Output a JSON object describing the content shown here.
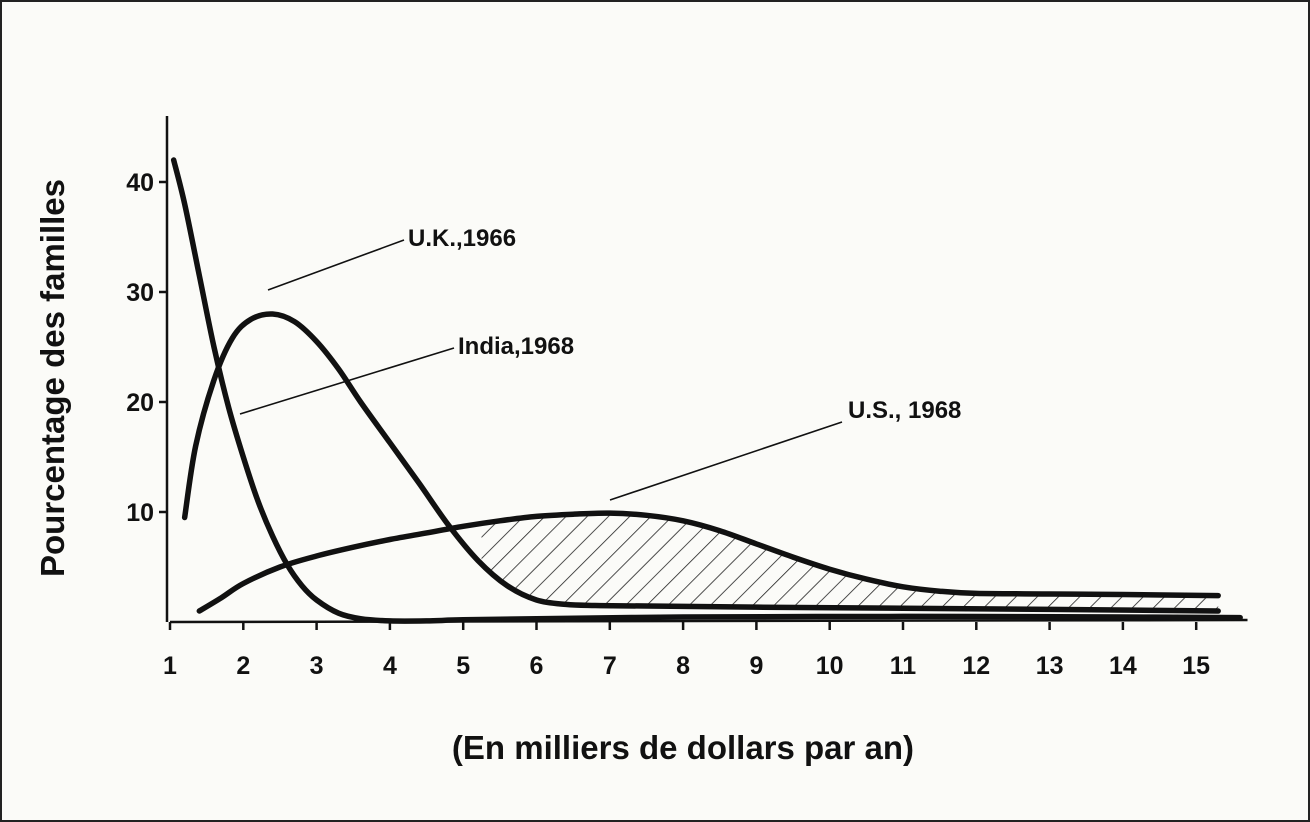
{
  "chart_data": {
    "type": "line",
    "xlabel": "(En milliers de dollars par an)",
    "ylabel": "Pourcentage des familles",
    "x_ticks": [
      "1",
      "2",
      "3",
      "4",
      "5",
      "6",
      "7",
      "8",
      "9",
      "10",
      "11",
      "12",
      "13",
      "14",
      "15"
    ],
    "y_ticks": [
      "10",
      "20",
      "30",
      "40"
    ],
    "xlim": [
      1,
      15.7
    ],
    "ylim": [
      0,
      46
    ],
    "grid": false,
    "shading": "hatched region between U.S., 1968 and U.K., 1966 curves from about 5.2 to 15.3",
    "series": [
      {
        "name": "U.K.,1966",
        "x": [
          1.2,
          1.35,
          1.6,
          1.85,
          2.1,
          2.4,
          2.7,
          3.0,
          3.3,
          3.6,
          4.0,
          4.4,
          4.8,
          5.2,
          5.6,
          6.0,
          6.4,
          6.8,
          7.5,
          9,
          11,
          13,
          15.3
        ],
        "y": [
          9.5,
          16,
          22,
          25.8,
          27.5,
          28,
          27.3,
          25.5,
          23,
          20,
          16.3,
          12.6,
          8.8,
          5.6,
          3.3,
          2.0,
          1.6,
          1.5,
          1.45,
          1.35,
          1.25,
          1.15,
          1.0
        ]
      },
      {
        "name": "India,1968",
        "x": [
          1.05,
          1.2,
          1.4,
          1.6,
          1.8,
          2.0,
          2.2,
          2.4,
          2.6,
          2.8,
          3.0,
          3.3,
          3.6,
          4.0,
          4.5,
          5.0,
          6,
          8,
          10,
          12,
          14,
          15.6
        ],
        "y": [
          42,
          38,
          31.5,
          25,
          19.5,
          15,
          11,
          7.8,
          5.2,
          3.3,
          2.0,
          0.8,
          0.3,
          0.1,
          0.1,
          0.2,
          0.3,
          0.45,
          0.5,
          0.5,
          0.45,
          0.4
        ]
      },
      {
        "name": "U.S., 1968",
        "x": [
          1.4,
          1.7,
          2.0,
          2.5,
          3.0,
          3.5,
          4.0,
          4.5,
          5.0,
          5.5,
          6.0,
          6.5,
          7.0,
          7.5,
          8.0,
          8.5,
          9.0,
          9.5,
          10.0,
          10.5,
          11,
          11.5,
          12,
          13,
          14,
          15.3
        ],
        "y": [
          1.0,
          2.2,
          3.5,
          5.0,
          6.0,
          6.8,
          7.5,
          8.1,
          8.7,
          9.2,
          9.6,
          9.8,
          9.9,
          9.7,
          9.2,
          8.3,
          7.1,
          5.9,
          4.8,
          3.9,
          3.2,
          2.8,
          2.6,
          2.55,
          2.5,
          2.4
        ]
      }
    ]
  }
}
